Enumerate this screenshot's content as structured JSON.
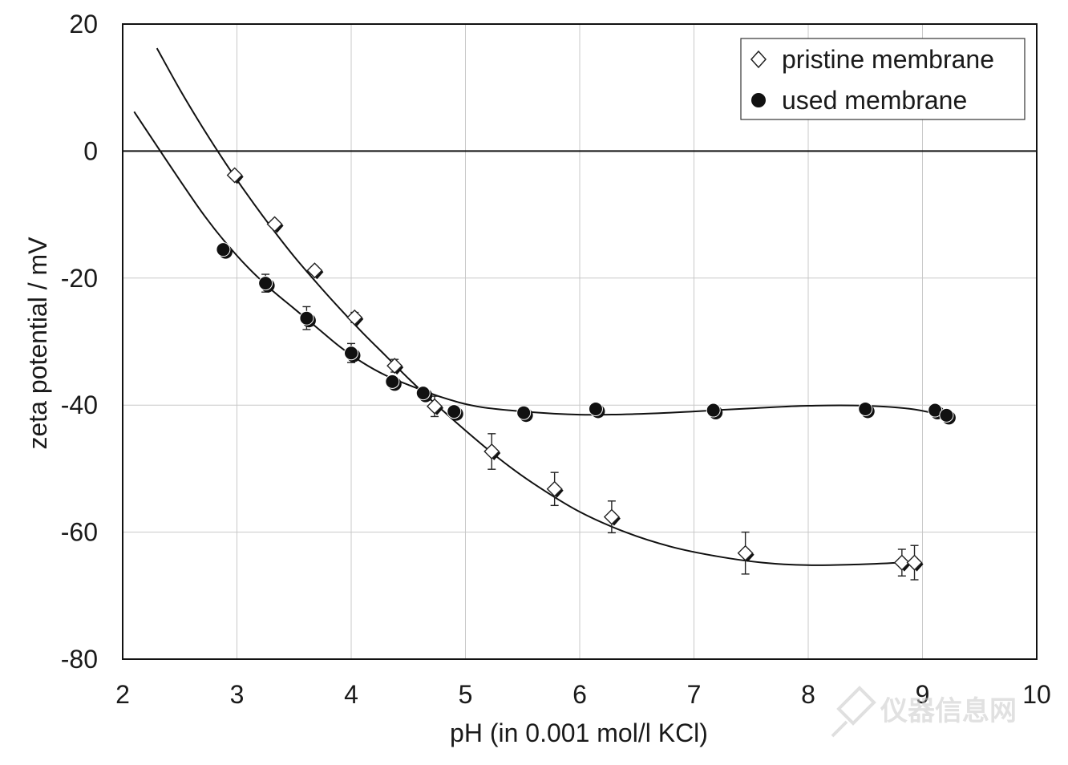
{
  "chart_data": {
    "type": "scatter",
    "title": "",
    "xlabel": "pH (in 0.001 mol/l KCl)",
    "ylabel": "zeta potential / mV",
    "xlim": [
      2,
      10
    ],
    "ylim": [
      -80,
      20
    ],
    "xticks": [
      2,
      3,
      4,
      5,
      6,
      7,
      8,
      9,
      10
    ],
    "yticks": [
      20,
      0,
      -20,
      -40,
      -60,
      -80
    ],
    "grid": true,
    "zero_line": true,
    "legend_position": "top-right",
    "series": [
      {
        "name": "pristine membrane",
        "marker": "open-diamond",
        "x": [
          2.98,
          3.33,
          3.68,
          4.03,
          4.38,
          4.73,
          5.23,
          5.78,
          6.28,
          7.45,
          8.82,
          8.93
        ],
        "y": [
          -3.8,
          -11.5,
          -18.8,
          -26.2,
          -33.8,
          -40.2,
          -47.3,
          -53.2,
          -57.6,
          -63.3,
          -64.8,
          -64.8
        ],
        "err": [
          0.5,
          0.6,
          0.6,
          0.8,
          1.0,
          1.6,
          2.8,
          2.6,
          2.5,
          3.3,
          2.1,
          2.7
        ],
        "fit_x": [
          2.3,
          2.5,
          2.7,
          2.9,
          3.1,
          3.3,
          3.5,
          3.7,
          3.9,
          4.1,
          4.3,
          4.5,
          4.7,
          5.0,
          5.3,
          5.6,
          6.0,
          6.4,
          6.8,
          7.2,
          7.6,
          8.0,
          8.4,
          8.8,
          8.95
        ],
        "fit_y": [
          16.2,
          9.7,
          3.7,
          -1.9,
          -7.1,
          -12.0,
          -16.6,
          -20.8,
          -24.8,
          -28.6,
          -32.2,
          -35.8,
          -39.2,
          -44.0,
          -48.5,
          -52.4,
          -56.8,
          -60.0,
          -62.3,
          -63.8,
          -64.8,
          -65.2,
          -65.1,
          -64.8,
          -64.6
        ]
      },
      {
        "name": "used membrane",
        "marker": "filled-circle",
        "x": [
          2.88,
          3.25,
          3.61,
          4.0,
          4.36,
          4.63,
          4.9,
          5.51,
          6.14,
          7.17,
          8.5,
          9.11,
          9.21
        ],
        "y": [
          -15.5,
          -20.8,
          -26.3,
          -31.8,
          -36.3,
          -38.1,
          -41.0,
          -41.2,
          -40.6,
          -40.8,
          -40.6,
          -40.8,
          -41.6
        ],
        "err": [
          0.6,
          1.4,
          1.8,
          1.5,
          0.6,
          0.6,
          0.5,
          0.5,
          0.5,
          0.5,
          0.5,
          0.5,
          0.5
        ],
        "fit_x": [
          2.1,
          2.3,
          2.5,
          2.7,
          2.9,
          3.1,
          3.3,
          3.5,
          3.7,
          3.9,
          4.1,
          4.3,
          4.5,
          4.8,
          5.1,
          5.5,
          6.0,
          6.5,
          7.0,
          7.5,
          8.0,
          8.5,
          8.9,
          9.23
        ],
        "fit_y": [
          6.2,
          0.8,
          -4.6,
          -9.8,
          -14.4,
          -18.4,
          -21.8,
          -24.8,
          -27.8,
          -30.8,
          -33.3,
          -35.3,
          -36.8,
          -38.8,
          -40.2,
          -41.0,
          -41.5,
          -41.4,
          -41.0,
          -40.5,
          -40.1,
          -40.1,
          -40.6,
          -41.8
        ]
      }
    ]
  },
  "watermark": {
    "text": "仪器信息网"
  }
}
